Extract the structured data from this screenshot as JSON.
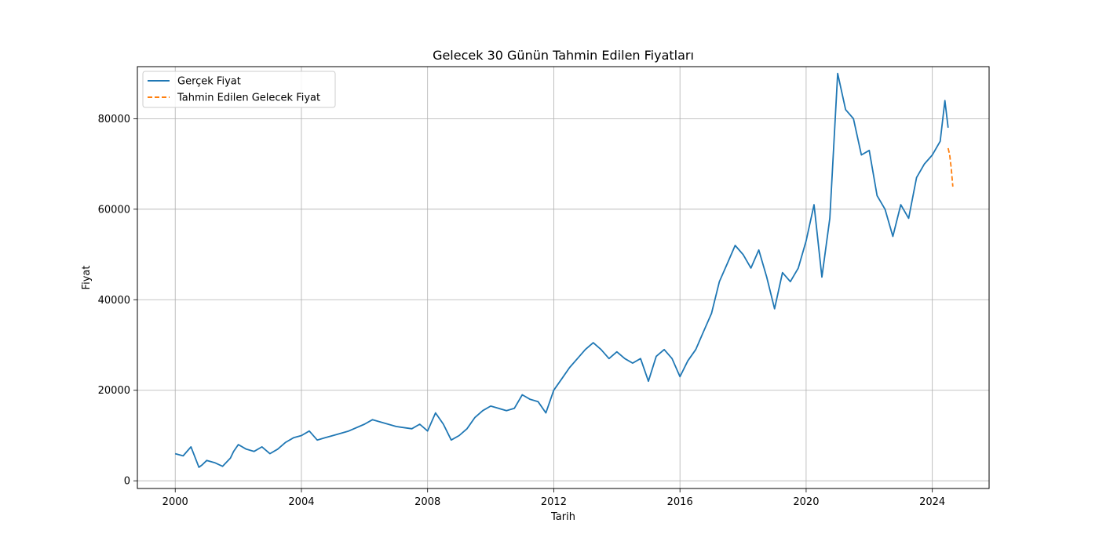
{
  "chart_data": {
    "type": "line",
    "title": "Gelecek 30 Günün Tahmin Edilen Fiyatları",
    "xlabel": "Tarih",
    "ylabel": "Fiyat",
    "x_ticks": [
      "2000",
      "2004",
      "2008",
      "2012",
      "2016",
      "2020",
      "2024"
    ],
    "x_tick_years": [
      2000,
      2004,
      2008,
      2012,
      2016,
      2020,
      2024
    ],
    "y_ticks": [
      0,
      20000,
      40000,
      60000,
      80000
    ],
    "xlim": [
      1998.8,
      2025.8
    ],
    "ylim": [
      -1700,
      91500
    ],
    "grid": true,
    "legend_position": "top-left",
    "series": [
      {
        "name": "Gerçek Fiyat",
        "color": "#1f77b4",
        "style": "solid",
        "x": [
          2000.0,
          2000.25,
          2000.5,
          2000.75,
          2000.85,
          2001.0,
          2001.25,
          2001.5,
          2001.75,
          2001.85,
          2002.0,
          2002.25,
          2002.5,
          2002.75,
          2003.0,
          2003.25,
          2003.5,
          2003.75,
          2004.0,
          2004.25,
          2004.5,
          2004.75,
          2005.0,
          2005.5,
          2006.0,
          2006.25,
          2006.5,
          2007.0,
          2007.5,
          2007.75,
          2008.0,
          2008.25,
          2008.5,
          2008.75,
          2009.0,
          2009.25,
          2009.5,
          2009.75,
          2010.0,
          2010.25,
          2010.5,
          2010.75,
          2011.0,
          2011.25,
          2011.5,
          2011.75,
          2012.0,
          2012.25,
          2012.5,
          2012.75,
          2013.0,
          2013.25,
          2013.5,
          2013.75,
          2014.0,
          2014.25,
          2014.5,
          2014.75,
          2015.0,
          2015.25,
          2015.5,
          2015.75,
          2016.0,
          2016.25,
          2016.5,
          2016.75,
          2017.0,
          2017.25,
          2017.5,
          2017.75,
          2018.0,
          2018.25,
          2018.5,
          2018.75,
          2019.0,
          2019.25,
          2019.5,
          2019.75,
          2020.0,
          2020.25,
          2020.5,
          2020.75,
          2021.0,
          2021.25,
          2021.5,
          2021.75,
          2022.0,
          2022.25,
          2022.5,
          2022.75,
          2023.0,
          2023.25,
          2023.5,
          2023.75,
          2024.0,
          2024.25,
          2024.4,
          2024.5
        ],
        "y": [
          6000,
          5500,
          7500,
          3000,
          3500,
          4500,
          4000,
          3200,
          5000,
          6500,
          8000,
          7000,
          6500,
          7500,
          6000,
          7000,
          8500,
          9500,
          10000,
          11000,
          9000,
          9500,
          10000,
          11000,
          12500,
          13500,
          13000,
          12000,
          11500,
          12500,
          11000,
          15000,
          12500,
          9000,
          10000,
          11500,
          14000,
          15500,
          16500,
          16000,
          15500,
          16000,
          19000,
          18000,
          17500,
          15000,
          20000,
          22500,
          25000,
          27000,
          29000,
          30500,
          29000,
          27000,
          28500,
          27000,
          26000,
          27000,
          22000,
          27500,
          29000,
          27000,
          23000,
          26500,
          29000,
          33000,
          37000,
          44000,
          48000,
          52000,
          50000,
          47000,
          51000,
          45000,
          38000,
          46000,
          44000,
          47000,
          53000,
          61000,
          45000,
          58000,
          90000,
          82000,
          80000,
          72000,
          73000,
          63000,
          60000,
          54000,
          61000,
          58000,
          67000,
          70000,
          72000,
          75000,
          84000,
          78000
        ]
      },
      {
        "name": "Tahmin Edilen Gelecek Fiyat",
        "color": "#ff7f0e",
        "style": "dashed",
        "x": [
          2024.5,
          2024.55,
          2024.6,
          2024.65
        ],
        "y": [
          73500,
          72000,
          69000,
          65000
        ]
      }
    ]
  }
}
